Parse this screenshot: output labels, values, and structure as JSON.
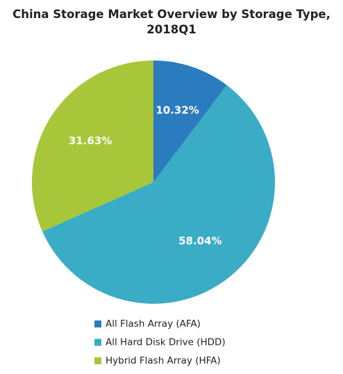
{
  "chart_data": {
    "type": "pie",
    "title": "China Storage Market Overview by Storage Type, 2018Q1",
    "categories": [
      "All Flash Array (AFA)",
      "All Hard Disk Drive (HDD)",
      "Hybrid Flash Array (HFA)"
    ],
    "values": [
      10.32,
      58.04,
      31.63
    ],
    "value_labels": [
      "10.32%",
      "58.04%",
      "31.63%"
    ],
    "colors": [
      "#2b7bbf",
      "#3aacc6",
      "#a8c639"
    ],
    "legend": "bottom"
  }
}
